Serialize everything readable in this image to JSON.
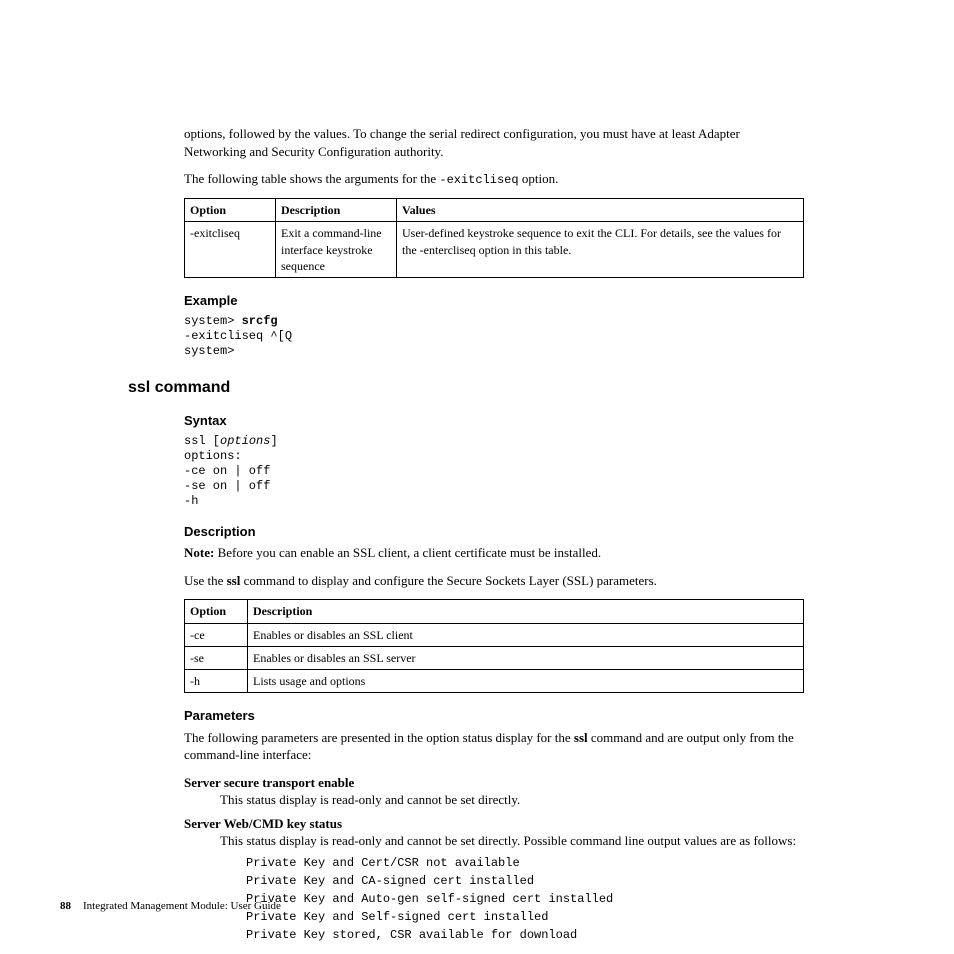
{
  "intro": {
    "p1": "options, followed by the values. To change the serial redirect configuration, you must have at least Adapter Networking and Security Configuration authority.",
    "p2_pre": "The following table shows the arguments for the ",
    "p2_code": "-exitcliseq",
    "p2_post": " option."
  },
  "table1": {
    "headers": [
      "Option",
      "Description",
      "Values"
    ],
    "row": {
      "option": "-exitcliseq",
      "desc": "Exit a command-line interface keystroke sequence",
      "values": "User-defined keystroke sequence to exit the CLI. For details, see the values for the -entercliseq option in this table."
    }
  },
  "example": {
    "heading": "Example",
    "l1a": "system> ",
    "l1b": "srcfg",
    "l2": "-exitcliseq ^[Q",
    "l3": "system>"
  },
  "ssl": {
    "heading": "ssl command",
    "syntax_h": "Syntax",
    "syntax": {
      "l1a": "ssl [",
      "l1b": "options",
      "l1c": "]",
      "l2": "options:",
      "l3": "-ce on | off",
      "l4": "-se on | off",
      "l5": "-h"
    },
    "desc_h": "Description",
    "note_label": "Note:",
    "note_text": " Before you can enable an SSL client, a client certificate must be installed.",
    "desc_p_pre": "Use the ",
    "desc_p_bold": "ssl",
    "desc_p_post": " command to display and configure the Secure Sockets Layer (SSL) parameters.",
    "table2": {
      "headers": [
        "Option",
        "Description"
      ],
      "rows": [
        {
          "opt": "-ce",
          "desc": "Enables or disables an SSL client"
        },
        {
          "opt": "-se",
          "desc": "Enables or disables an SSL server"
        },
        {
          "opt": "-h",
          "desc": "Lists usage and options"
        }
      ]
    },
    "params_h": "Parameters",
    "params_intro_pre": "The following parameters are presented in the option status display for the ",
    "params_intro_bold": "ssl",
    "params_intro_post": " command and are output only from the command-line interface:",
    "dl": [
      {
        "term": "Server secure transport enable",
        "def": "This status display is read-only and cannot be set directly."
      },
      {
        "term": "Server Web/CMD key status",
        "def": "This status display is read-only and cannot be set directly. Possible command line output values are as follows:"
      }
    ],
    "certs": [
      "Private Key and Cert/CSR not available",
      "Private Key and CA-signed cert installed",
      "Private Key and Auto-gen self-signed cert installed",
      "Private Key and Self-signed cert installed",
      "Private Key stored, CSR available for download"
    ]
  },
  "footer": {
    "page": "88",
    "title": "Integrated Management Module:  User Guide"
  }
}
